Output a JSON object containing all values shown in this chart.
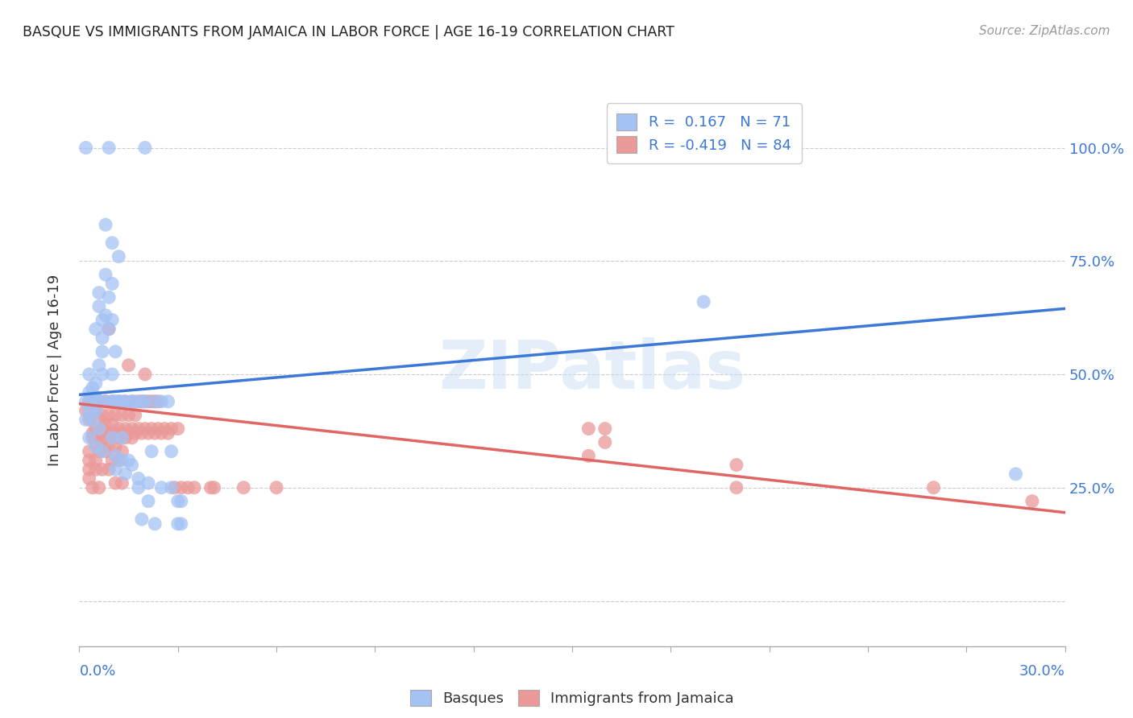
{
  "title": "BASQUE VS IMMIGRANTS FROM JAMAICA IN LABOR FORCE | AGE 16-19 CORRELATION CHART",
  "source": "Source: ZipAtlas.com",
  "ylabel": "In Labor Force | Age 16-19",
  "ytick_labels": [
    "",
    "25.0%",
    "50.0%",
    "75.0%",
    "100.0%"
  ],
  "ytick_positions": [
    0.0,
    0.25,
    0.5,
    0.75,
    1.0
  ],
  "xmin": 0.0,
  "xmax": 0.3,
  "ymin": -0.1,
  "ymax": 1.12,
  "watermark": "ZIPatlas",
  "blue_color": "#a4c2f4",
  "pink_color": "#ea9999",
  "line_blue": "#3c78d8",
  "line_pink": "#e06666",
  "axis_label_color": "#3c78d8",
  "blue_scatter": [
    [
      0.002,
      1.0
    ],
    [
      0.009,
      1.0
    ],
    [
      0.02,
      1.0
    ],
    [
      0.008,
      0.83
    ],
    [
      0.01,
      0.79
    ],
    [
      0.012,
      0.76
    ],
    [
      0.008,
      0.72
    ],
    [
      0.01,
      0.7
    ],
    [
      0.006,
      0.68
    ],
    [
      0.009,
      0.67
    ],
    [
      0.006,
      0.65
    ],
    [
      0.008,
      0.63
    ],
    [
      0.007,
      0.62
    ],
    [
      0.01,
      0.62
    ],
    [
      0.005,
      0.6
    ],
    [
      0.009,
      0.6
    ],
    [
      0.007,
      0.58
    ],
    [
      0.007,
      0.55
    ],
    [
      0.011,
      0.55
    ],
    [
      0.006,
      0.52
    ],
    [
      0.003,
      0.5
    ],
    [
      0.007,
      0.5
    ],
    [
      0.01,
      0.5
    ],
    [
      0.005,
      0.48
    ],
    [
      0.004,
      0.47
    ],
    [
      0.003,
      0.46
    ],
    [
      0.005,
      0.45
    ],
    [
      0.002,
      0.44
    ],
    [
      0.004,
      0.44
    ],
    [
      0.006,
      0.44
    ],
    [
      0.008,
      0.44
    ],
    [
      0.01,
      0.44
    ],
    [
      0.011,
      0.44
    ],
    [
      0.012,
      0.44
    ],
    [
      0.013,
      0.44
    ],
    [
      0.014,
      0.44
    ],
    [
      0.016,
      0.44
    ],
    [
      0.017,
      0.44
    ],
    [
      0.019,
      0.44
    ],
    [
      0.02,
      0.44
    ],
    [
      0.023,
      0.44
    ],
    [
      0.025,
      0.44
    ],
    [
      0.027,
      0.44
    ],
    [
      0.003,
      0.42
    ],
    [
      0.005,
      0.42
    ],
    [
      0.002,
      0.4
    ],
    [
      0.004,
      0.4
    ],
    [
      0.006,
      0.38
    ],
    [
      0.003,
      0.36
    ],
    [
      0.01,
      0.36
    ],
    [
      0.013,
      0.36
    ],
    [
      0.005,
      0.34
    ],
    [
      0.007,
      0.33
    ],
    [
      0.022,
      0.33
    ],
    [
      0.028,
      0.33
    ],
    [
      0.011,
      0.32
    ],
    [
      0.013,
      0.31
    ],
    [
      0.015,
      0.31
    ],
    [
      0.016,
      0.3
    ],
    [
      0.011,
      0.29
    ],
    [
      0.014,
      0.28
    ],
    [
      0.018,
      0.27
    ],
    [
      0.021,
      0.26
    ],
    [
      0.018,
      0.25
    ],
    [
      0.025,
      0.25
    ],
    [
      0.028,
      0.25
    ],
    [
      0.021,
      0.22
    ],
    [
      0.03,
      0.22
    ],
    [
      0.031,
      0.22
    ],
    [
      0.019,
      0.18
    ],
    [
      0.023,
      0.17
    ],
    [
      0.03,
      0.17
    ],
    [
      0.031,
      0.17
    ],
    [
      0.19,
      0.66
    ],
    [
      0.285,
      0.28
    ]
  ],
  "pink_scatter": [
    [
      0.009,
      0.6
    ],
    [
      0.015,
      0.52
    ],
    [
      0.02,
      0.5
    ],
    [
      0.003,
      0.44
    ],
    [
      0.004,
      0.44
    ],
    [
      0.006,
      0.44
    ],
    [
      0.008,
      0.44
    ],
    [
      0.01,
      0.44
    ],
    [
      0.012,
      0.44
    ],
    [
      0.014,
      0.44
    ],
    [
      0.016,
      0.44
    ],
    [
      0.018,
      0.44
    ],
    [
      0.019,
      0.44
    ],
    [
      0.02,
      0.44
    ],
    [
      0.021,
      0.44
    ],
    [
      0.022,
      0.44
    ],
    [
      0.023,
      0.44
    ],
    [
      0.024,
      0.44
    ],
    [
      0.002,
      0.42
    ],
    [
      0.005,
      0.42
    ],
    [
      0.007,
      0.41
    ],
    [
      0.009,
      0.41
    ],
    [
      0.011,
      0.41
    ],
    [
      0.013,
      0.41
    ],
    [
      0.015,
      0.41
    ],
    [
      0.017,
      0.41
    ],
    [
      0.003,
      0.4
    ],
    [
      0.006,
      0.4
    ],
    [
      0.008,
      0.39
    ],
    [
      0.01,
      0.39
    ],
    [
      0.005,
      0.38
    ],
    [
      0.007,
      0.38
    ],
    [
      0.012,
      0.38
    ],
    [
      0.014,
      0.38
    ],
    [
      0.016,
      0.38
    ],
    [
      0.018,
      0.38
    ],
    [
      0.02,
      0.38
    ],
    [
      0.022,
      0.38
    ],
    [
      0.024,
      0.38
    ],
    [
      0.026,
      0.38
    ],
    [
      0.028,
      0.38
    ],
    [
      0.03,
      0.38
    ],
    [
      0.004,
      0.37
    ],
    [
      0.006,
      0.37
    ],
    [
      0.009,
      0.37
    ],
    [
      0.011,
      0.37
    ],
    [
      0.013,
      0.37
    ],
    [
      0.015,
      0.37
    ],
    [
      0.017,
      0.37
    ],
    [
      0.019,
      0.37
    ],
    [
      0.021,
      0.37
    ],
    [
      0.023,
      0.37
    ],
    [
      0.025,
      0.37
    ],
    [
      0.027,
      0.37
    ],
    [
      0.004,
      0.36
    ],
    [
      0.008,
      0.36
    ],
    [
      0.01,
      0.36
    ],
    [
      0.012,
      0.36
    ],
    [
      0.014,
      0.36
    ],
    [
      0.016,
      0.36
    ],
    [
      0.005,
      0.35
    ],
    [
      0.007,
      0.35
    ],
    [
      0.009,
      0.34
    ],
    [
      0.011,
      0.34
    ],
    [
      0.013,
      0.33
    ],
    [
      0.003,
      0.33
    ],
    [
      0.006,
      0.33
    ],
    [
      0.008,
      0.33
    ],
    [
      0.003,
      0.31
    ],
    [
      0.005,
      0.31
    ],
    [
      0.01,
      0.31
    ],
    [
      0.012,
      0.31
    ],
    [
      0.003,
      0.29
    ],
    [
      0.005,
      0.29
    ],
    [
      0.007,
      0.29
    ],
    [
      0.009,
      0.29
    ],
    [
      0.003,
      0.27
    ],
    [
      0.011,
      0.26
    ],
    [
      0.013,
      0.26
    ],
    [
      0.004,
      0.25
    ],
    [
      0.006,
      0.25
    ],
    [
      0.029,
      0.25
    ],
    [
      0.031,
      0.25
    ],
    [
      0.033,
      0.25
    ],
    [
      0.035,
      0.25
    ],
    [
      0.04,
      0.25
    ],
    [
      0.041,
      0.25
    ],
    [
      0.05,
      0.25
    ],
    [
      0.06,
      0.25
    ],
    [
      0.155,
      0.38
    ],
    [
      0.155,
      0.32
    ],
    [
      0.16,
      0.35
    ],
    [
      0.16,
      0.38
    ],
    [
      0.2,
      0.3
    ],
    [
      0.2,
      0.25
    ],
    [
      0.26,
      0.25
    ],
    [
      0.29,
      0.22
    ]
  ],
  "blue_line_x": [
    0.0,
    0.3
  ],
  "blue_line_y": [
    0.455,
    0.645
  ],
  "pink_line_x": [
    0.0,
    0.3
  ],
  "pink_line_y": [
    0.435,
    0.195
  ]
}
